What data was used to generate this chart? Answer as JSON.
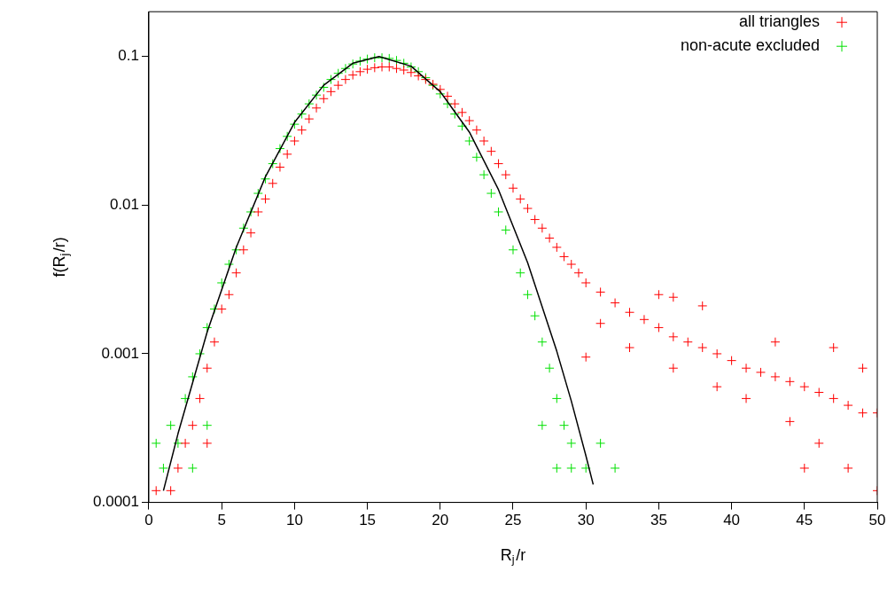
{
  "chart_data": {
    "type": "scatter",
    "xlabel": "R$_{j}$/r",
    "ylabel": "f(R$_{j}$/r)",
    "xlim": [
      0,
      50
    ],
    "xticks": [
      0,
      5,
      10,
      15,
      20,
      25,
      30,
      35,
      40,
      45,
      50
    ],
    "ylim": [
      0.0001,
      0.2
    ],
    "yticks": [
      0.0001,
      0.001,
      0.01,
      0.1
    ],
    "log": "y",
    "grid": false,
    "legend": "top right",
    "marker": "cross",
    "series": [
      {
        "name": "all triangles",
        "type": "scatter",
        "color": "#ff0000",
        "x": [
          0.5,
          1.5,
          2,
          2.5,
          3,
          3.5,
          4,
          4,
          4.5,
          5,
          5.5,
          6,
          6.5,
          7,
          7.5,
          8,
          8.5,
          9,
          9.5,
          10,
          10.5,
          11,
          11.5,
          12,
          12.5,
          13,
          13.5,
          14,
          14.5,
          15,
          15.5,
          16,
          16.5,
          17,
          17.5,
          18,
          18.5,
          19,
          19.5,
          20,
          20.5,
          21,
          21.5,
          22,
          22.5,
          23,
          23.5,
          24,
          24.5,
          25,
          25.5,
          26,
          26.5,
          27,
          27.5,
          28,
          28.5,
          29,
          29.5,
          30,
          31,
          31,
          32,
          33,
          33,
          34,
          35,
          35,
          36,
          36,
          37,
          38,
          38,
          39,
          39,
          40,
          41,
          41,
          42,
          43,
          43,
          44,
          44,
          45,
          46,
          46,
          47,
          47,
          48,
          48,
          49,
          49,
          50,
          50,
          45,
          36,
          30
        ],
        "values": [
          0.00012,
          0.00012,
          0.00017,
          0.00025,
          0.00033,
          0.0005,
          0.00025,
          0.0008,
          0.0012,
          0.002,
          0.0025,
          0.0035,
          0.005,
          0.0065,
          0.009,
          0.011,
          0.014,
          0.018,
          0.022,
          0.027,
          0.032,
          0.038,
          0.045,
          0.052,
          0.058,
          0.064,
          0.07,
          0.075,
          0.079,
          0.082,
          0.084,
          0.085,
          0.085,
          0.083,
          0.081,
          0.078,
          0.074,
          0.07,
          0.065,
          0.06,
          0.054,
          0.048,
          0.042,
          0.037,
          0.032,
          0.027,
          0.023,
          0.019,
          0.016,
          0.013,
          0.011,
          0.0095,
          0.008,
          0.007,
          0.006,
          0.0052,
          0.0045,
          0.004,
          0.0035,
          0.003,
          0.0026,
          0.0016,
          0.0022,
          0.0019,
          0.0011,
          0.0017,
          0.0015,
          0.0025,
          0.0013,
          0.0008,
          0.0012,
          0.0011,
          0.0021,
          0.001,
          0.0006,
          0.0009,
          0.0008,
          0.0005,
          0.00075,
          0.0007,
          0.0012,
          0.00065,
          0.00035,
          0.0006,
          0.00055,
          0.00025,
          0.0005,
          0.0011,
          0.00045,
          0.00017,
          0.0004,
          0.0008,
          0.0004,
          0.00012,
          0.00017,
          0.0024,
          0.00095
        ]
      },
      {
        "name": "non-acute excluded",
        "type": "scatter",
        "color": "#00e000",
        "x": [
          0.5,
          1,
          1.5,
          2,
          2.5,
          3,
          3,
          3.5,
          4,
          4,
          4.5,
          5,
          5.5,
          6,
          6.5,
          7,
          7.5,
          8,
          8.5,
          9,
          9.5,
          10,
          10.5,
          11,
          11.5,
          12,
          12.5,
          13,
          13.5,
          14,
          14.5,
          15,
          15.5,
          16,
          16.5,
          17,
          17.5,
          18,
          18.5,
          19,
          19.5,
          20,
          20.5,
          21,
          21.5,
          22,
          22.5,
          23,
          23.5,
          24,
          24.5,
          25,
          25.5,
          26,
          26.5,
          27,
          27.5,
          28,
          28.5,
          29,
          30,
          31,
          32,
          27,
          28,
          29
        ],
        "values": [
          0.00025,
          0.00017,
          0.00033,
          0.00025,
          0.0005,
          0.00017,
          0.0007,
          0.001,
          0.00033,
          0.0015,
          0.002,
          0.003,
          0.004,
          0.005,
          0.007,
          0.009,
          0.012,
          0.015,
          0.019,
          0.024,
          0.029,
          0.035,
          0.041,
          0.048,
          0.055,
          0.062,
          0.07,
          0.077,
          0.083,
          0.089,
          0.093,
          0.096,
          0.098,
          0.098,
          0.097,
          0.094,
          0.09,
          0.085,
          0.079,
          0.072,
          0.064,
          0.056,
          0.048,
          0.041,
          0.034,
          0.027,
          0.021,
          0.016,
          0.012,
          0.009,
          0.0068,
          0.005,
          0.0035,
          0.0025,
          0.0018,
          0.0012,
          0.0008,
          0.0005,
          0.00033,
          0.00025,
          0.00017,
          0.00025,
          0.00017,
          0.00033,
          0.00017,
          0.00017
        ]
      },
      {
        "type": "line",
        "color": "#000000",
        "marker": "none",
        "x": [
          1,
          2,
          4,
          6,
          8,
          10,
          12,
          14,
          15.8,
          18,
          20,
          22,
          24,
          26,
          28,
          29,
          30,
          30.5
        ],
        "values": [
          0.00012,
          0.00029,
          0.0014,
          0.0052,
          0.0155,
          0.036,
          0.064,
          0.09,
          0.1,
          0.086,
          0.058,
          0.031,
          0.0127,
          0.0041,
          0.00104,
          0.00048,
          0.000206,
          0.000132
        ]
      }
    ]
  }
}
